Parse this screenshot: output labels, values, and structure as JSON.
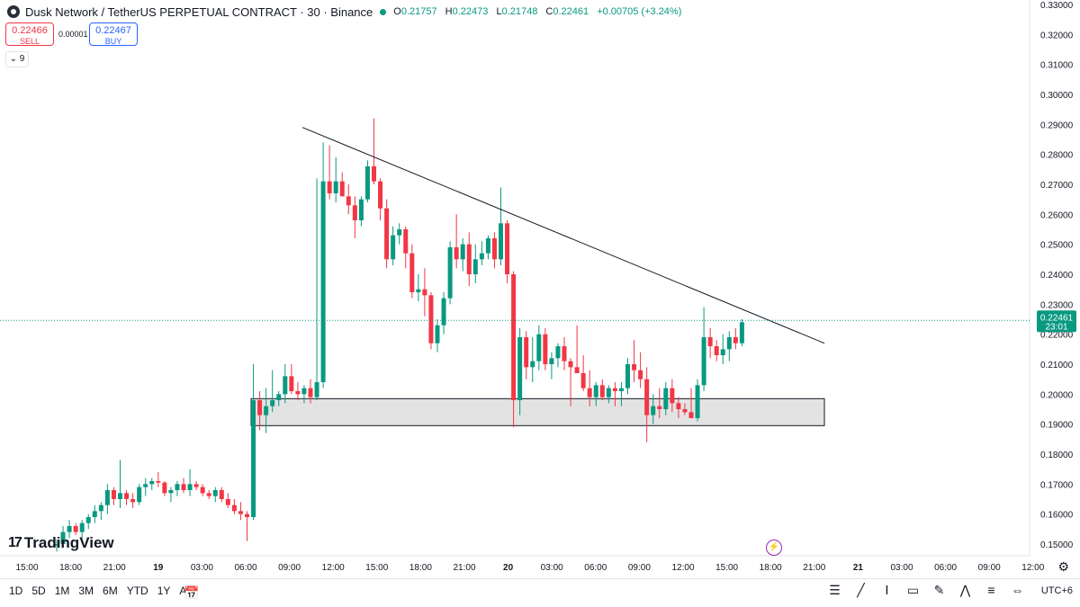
{
  "header": {
    "title": "Dusk Network / TetherUS PERPETUAL CONTRACT · 30 · Binance",
    "ohlc": {
      "o_label": "O",
      "o": "0.21757",
      "h_label": "H",
      "h": "0.22473",
      "l_label": "L",
      "l": "0.21748",
      "c_label": "C",
      "c": "0.22461",
      "change": "+0.00705 (+3.24%)"
    },
    "status_color": "#089981"
  },
  "trade": {
    "sell_price": "0.22466",
    "sell_label": "SELL",
    "spread": "0.00001",
    "buy_price": "0.22467",
    "buy_label": "BUY"
  },
  "collapse_label": "9",
  "brand": "TradingView",
  "price_tag": {
    "price": "0.22461",
    "countdown": "23:01",
    "color": "#089981"
  },
  "timeframes": [
    "1D",
    "5D",
    "1M",
    "3M",
    "6M",
    "YTD",
    "1Y",
    "All"
  ],
  "timezone": "UTC+6",
  "icons": {
    "calendar": "calendar-icon",
    "settings": "gear-icon",
    "bolt": "lightning-icon",
    "tools": [
      "ruler-icon",
      "trend-line-icon",
      "fib-icon",
      "rectangle-icon",
      "brush-icon",
      "pattern-icon",
      "text-lines-icon",
      "measure-icon"
    ]
  },
  "chart_data": {
    "type": "candlestick",
    "y_axis": {
      "ylim": [
        0.145,
        0.33
      ],
      "ticks": [
        "0.15000",
        "0.16000",
        "0.17000",
        "0.18000",
        "0.19000",
        "0.20000",
        "0.21000",
        "0.22000",
        "0.23000",
        "0.24000",
        "0.25000",
        "0.26000",
        "0.27000",
        "0.28000",
        "0.29000",
        "0.30000",
        "0.31000",
        "0.32000",
        "0.33000"
      ]
    },
    "x_axis": {
      "ticks": [
        "15:00",
        "18:00",
        "21:00",
        "19",
        "03:00",
        "06:00",
        "09:00",
        "12:00",
        "15:00",
        "18:00",
        "21:00",
        "20",
        "03:00",
        "06:00",
        "09:00",
        "12:00",
        "15:00",
        "18:00",
        "21:00",
        "21",
        "03:00",
        "06:00",
        "09:00",
        "12:00"
      ]
    },
    "up_color": "#089981",
    "down_color": "#f23645",
    "candles": [
      [
        0.1495,
        0.1515,
        0.1475,
        0.15
      ],
      [
        0.15,
        0.156,
        0.149,
        0.154
      ],
      [
        0.154,
        0.158,
        0.152,
        0.156
      ],
      [
        0.156,
        0.157,
        0.153,
        0.154
      ],
      [
        0.154,
        0.158,
        0.152,
        0.157
      ],
      [
        0.157,
        0.16,
        0.155,
        0.159
      ],
      [
        0.159,
        0.163,
        0.157,
        0.161
      ],
      [
        0.161,
        0.164,
        0.158,
        0.163
      ],
      [
        0.163,
        0.17,
        0.16,
        0.168
      ],
      [
        0.168,
        0.169,
        0.163,
        0.165
      ],
      [
        0.165,
        0.178,
        0.162,
        0.167
      ],
      [
        0.167,
        0.168,
        0.163,
        0.165
      ],
      [
        0.165,
        0.167,
        0.162,
        0.164
      ],
      [
        0.164,
        0.17,
        0.163,
        0.169
      ],
      [
        0.169,
        0.172,
        0.166,
        0.17
      ],
      [
        0.17,
        0.172,
        0.168,
        0.171
      ],
      [
        0.171,
        0.174,
        0.169,
        0.1705
      ],
      [
        0.1705,
        0.171,
        0.166,
        0.167
      ],
      [
        0.167,
        0.169,
        0.164,
        0.168
      ],
      [
        0.168,
        0.171,
        0.166,
        0.17
      ],
      [
        0.17,
        0.172,
        0.167,
        0.168
      ],
      [
        0.168,
        0.175,
        0.166,
        0.17
      ],
      [
        0.17,
        0.171,
        0.168,
        0.169
      ],
      [
        0.169,
        0.17,
        0.166,
        0.167
      ],
      [
        0.167,
        0.168,
        0.165,
        0.166
      ],
      [
        0.166,
        0.169,
        0.164,
        0.168
      ],
      [
        0.168,
        0.169,
        0.164,
        0.165
      ],
      [
        0.165,
        0.167,
        0.162,
        0.163
      ],
      [
        0.163,
        0.165,
        0.16,
        0.161
      ],
      [
        0.161,
        0.164,
        0.158,
        0.16
      ],
      [
        0.16,
        0.161,
        0.151,
        0.159
      ],
      [
        0.159,
        0.21,
        0.158,
        0.198
      ],
      [
        0.198,
        0.201,
        0.188,
        0.193
      ],
      [
        0.193,
        0.202,
        0.187,
        0.196
      ],
      [
        0.196,
        0.208,
        0.194,
        0.198
      ],
      [
        0.198,
        0.201,
        0.196,
        0.2
      ],
      [
        0.2,
        0.21,
        0.197,
        0.206
      ],
      [
        0.206,
        0.21,
        0.2,
        0.201
      ],
      [
        0.201,
        0.204,
        0.198,
        0.2
      ],
      [
        0.2,
        0.203,
        0.197,
        0.202
      ],
      [
        0.202,
        0.205,
        0.197,
        0.199
      ],
      [
        0.199,
        0.272,
        0.198,
        0.204
      ],
      [
        0.204,
        0.284,
        0.202,
        0.271
      ],
      [
        0.271,
        0.283,
        0.265,
        0.267
      ],
      [
        0.267,
        0.279,
        0.264,
        0.271
      ],
      [
        0.271,
        0.274,
        0.266,
        0.266
      ],
      [
        0.266,
        0.27,
        0.26,
        0.263
      ],
      [
        0.263,
        0.266,
        0.252,
        0.258
      ],
      [
        0.258,
        0.266,
        0.256,
        0.265
      ],
      [
        0.265,
        0.278,
        0.264,
        0.276
      ],
      [
        0.276,
        0.292,
        0.27,
        0.271
      ],
      [
        0.271,
        0.272,
        0.258,
        0.262
      ],
      [
        0.262,
        0.265,
        0.242,
        0.245
      ],
      [
        0.245,
        0.256,
        0.243,
        0.253
      ],
      [
        0.253,
        0.257,
        0.25,
        0.255
      ],
      [
        0.255,
        0.256,
        0.242,
        0.247
      ],
      [
        0.247,
        0.25,
        0.232,
        0.234
      ],
      [
        0.234,
        0.24,
        0.231,
        0.235
      ],
      [
        0.235,
        0.242,
        0.226,
        0.233
      ],
      [
        0.233,
        0.234,
        0.215,
        0.217
      ],
      [
        0.217,
        0.225,
        0.214,
        0.223
      ],
      [
        0.223,
        0.234,
        0.22,
        0.232
      ],
      [
        0.232,
        0.251,
        0.23,
        0.249
      ],
      [
        0.249,
        0.26,
        0.242,
        0.245
      ],
      [
        0.245,
        0.252,
        0.241,
        0.25
      ],
      [
        0.25,
        0.254,
        0.236,
        0.24
      ],
      [
        0.24,
        0.25,
        0.237,
        0.245
      ],
      [
        0.245,
        0.251,
        0.243,
        0.247
      ],
      [
        0.247,
        0.253,
        0.245,
        0.252
      ],
      [
        0.252,
        0.254,
        0.242,
        0.245
      ],
      [
        0.245,
        0.269,
        0.243,
        0.257
      ],
      [
        0.257,
        0.258,
        0.237,
        0.24
      ],
      [
        0.24,
        0.241,
        0.189,
        0.198
      ],
      [
        0.198,
        0.222,
        0.193,
        0.219
      ],
      [
        0.219,
        0.221,
        0.205,
        0.209
      ],
      [
        0.209,
        0.219,
        0.204,
        0.211
      ],
      [
        0.211,
        0.223,
        0.208,
        0.22
      ],
      [
        0.22,
        0.222,
        0.208,
        0.21
      ],
      [
        0.21,
        0.214,
        0.205,
        0.212
      ],
      [
        0.212,
        0.217,
        0.209,
        0.216
      ],
      [
        0.216,
        0.219,
        0.208,
        0.211
      ],
      [
        0.211,
        0.212,
        0.196,
        0.209
      ],
      [
        0.209,
        0.223,
        0.207,
        0.207
      ],
      [
        0.207,
        0.213,
        0.201,
        0.202
      ],
      [
        0.202,
        0.208,
        0.196,
        0.199
      ],
      [
        0.199,
        0.204,
        0.196,
        0.203
      ],
      [
        0.203,
        0.205,
        0.198,
        0.199
      ],
      [
        0.199,
        0.203,
        0.197,
        0.202
      ],
      [
        0.202,
        0.204,
        0.196,
        0.201
      ],
      [
        0.201,
        0.204,
        0.196,
        0.202
      ],
      [
        0.202,
        0.212,
        0.2,
        0.21
      ],
      [
        0.21,
        0.218,
        0.204,
        0.208
      ],
      [
        0.208,
        0.214,
        0.202,
        0.205
      ],
      [
        0.205,
        0.209,
        0.184,
        0.193
      ],
      [
        0.193,
        0.2,
        0.19,
        0.196
      ],
      [
        0.196,
        0.202,
        0.192,
        0.195
      ],
      [
        0.195,
        0.204,
        0.193,
        0.202
      ],
      [
        0.202,
        0.205,
        0.194,
        0.197
      ],
      [
        0.197,
        0.199,
        0.192,
        0.195
      ],
      [
        0.195,
        0.197,
        0.193,
        0.194
      ],
      [
        0.194,
        0.202,
        0.192,
        0.192
      ],
      [
        0.192,
        0.205,
        0.191,
        0.203
      ],
      [
        0.203,
        0.229,
        0.201,
        0.219
      ],
      [
        0.219,
        0.222,
        0.212,
        0.216
      ],
      [
        0.216,
        0.218,
        0.211,
        0.213
      ],
      [
        0.213,
        0.22,
        0.21,
        0.215
      ],
      [
        0.215,
        0.221,
        0.211,
        0.219
      ],
      [
        0.219,
        0.222,
        0.215,
        0.217
      ],
      [
        0.217,
        0.225,
        0.216,
        0.224
      ]
    ],
    "trendline": {
      "start": [
        0,
        0.289
      ],
      "end": [
        1,
        0.217
      ]
    },
    "support_zone": {
      "top": 0.1985,
      "bottom": 0.1895,
      "fill": "#e3e3e3"
    },
    "grid": false
  }
}
